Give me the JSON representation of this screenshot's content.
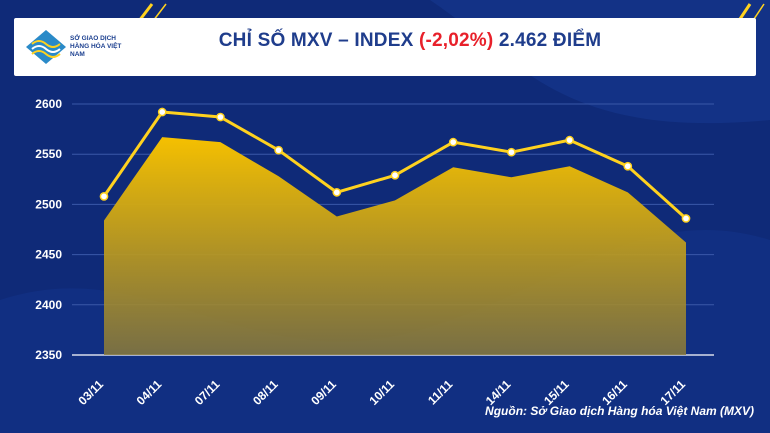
{
  "header": {
    "title_prefix": "CHỈ SỐ MXV – INDEX ",
    "title_change": "(-2,02%)",
    "title_suffix": " 2.462 ĐIỂM",
    "logo_text": "SỞ GIAO DỊCH HÀNG HÓA VIỆT NAM"
  },
  "source": "Nguồn: Sở Giao dịch Hàng hóa Việt Nam (MXV)",
  "colors": {
    "background": "#0f2a78",
    "line": "#ffd21f",
    "area_top": "#f5c000",
    "area_bottom": "#8a7a3a",
    "negative": "#e8202a"
  },
  "chart_data": {
    "type": "line",
    "categories": [
      "03/11",
      "04/11",
      "07/11",
      "08/11",
      "09/11",
      "10/11",
      "11/11",
      "14/11",
      "15/11",
      "16/11",
      "17/11"
    ],
    "series": [
      {
        "values": [
          2508,
          2592,
          2587,
          2554,
          2512,
          2529,
          2562,
          2552,
          2564,
          2538,
          2486
        ]
      },
      {
        "type": "area",
        "values": [
          2484,
          2567,
          2562,
          2528,
          2488,
          2504,
          2537,
          2527,
          2538,
          2512,
          2462
        ]
      }
    ],
    "ylim": [
      2350,
      2600
    ],
    "yticks": [
      "2350",
      "2400",
      "2450",
      "2500",
      "2550",
      "2600"
    ],
    "grid": true
  }
}
